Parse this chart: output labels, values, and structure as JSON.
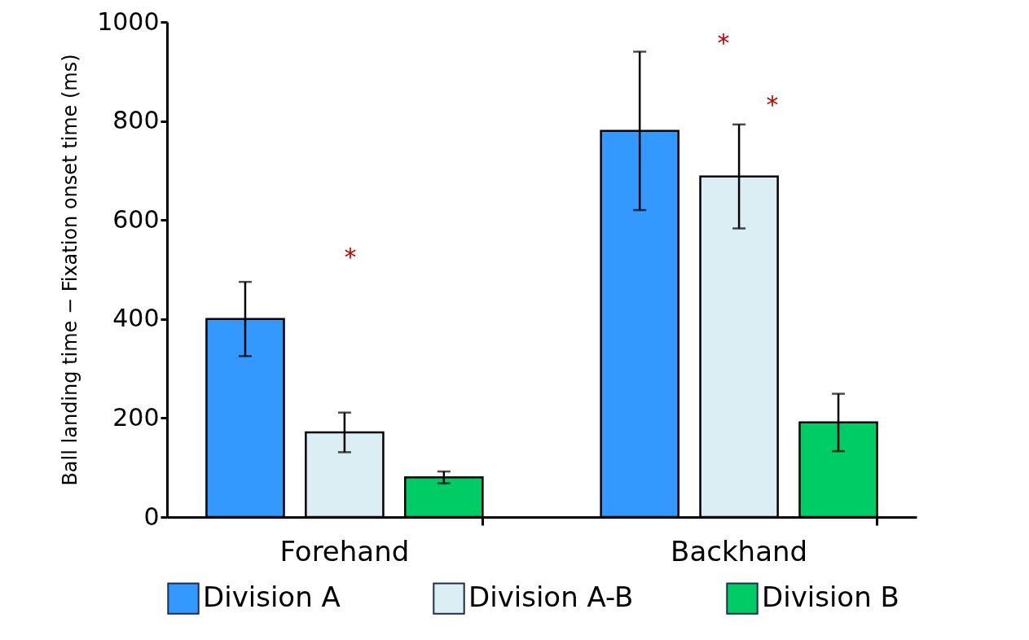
{
  "chart_data": {
    "type": "bar",
    "ylabel": "Ball landing time − Fixation onset time (ms)",
    "categories": [
      "Forehand",
      "Backhand"
    ],
    "series": [
      {
        "name": "Division A",
        "color": "#3399ff",
        "values": [
          400,
          780
        ],
        "errors": [
          75,
          160
        ]
      },
      {
        "name": "Division A-B",
        "color": "#daeef3",
        "values": [
          171,
          688
        ],
        "errors": [
          40,
          105
        ]
      },
      {
        "name": "Division B",
        "color": "#00cc66",
        "values": [
          80,
          191
        ],
        "errors": [
          12,
          58
        ]
      }
    ],
    "ylim": [
      0,
      1000
    ],
    "yticks": [
      0,
      200,
      400,
      600,
      800,
      1000
    ],
    "grid": false,
    "legend": "bottom",
    "annotations": [
      "*",
      "*",
      "*"
    ]
  }
}
